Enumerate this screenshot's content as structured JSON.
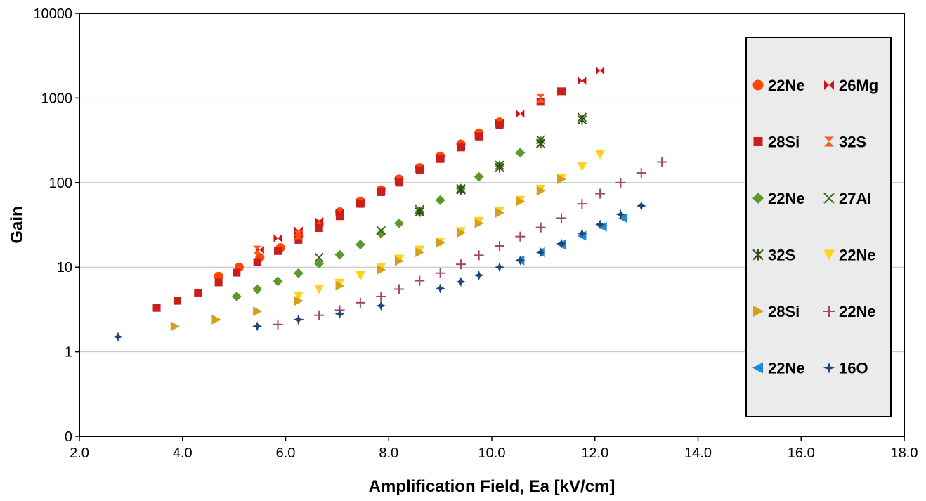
{
  "chart_data": {
    "type": "scatter",
    "title": "",
    "xlabel": "Amplification Field, Ea [kV/cm]",
    "ylabel": "Gain",
    "xlim": [
      2.0,
      18.0
    ],
    "ylim": [
      0.1,
      10000
    ],
    "y_scale": "log",
    "x_ticks": [
      "2.0",
      "4.0",
      "6.0",
      "8.0",
      "10.0",
      "12.0",
      "14.0",
      "16.0",
      "18.0"
    ],
    "y_ticks": [
      {
        "value": 0.1,
        "label": "0"
      },
      {
        "value": 1,
        "label": "1"
      },
      {
        "value": 10,
        "label": "10"
      },
      {
        "value": 100,
        "label": "100"
      },
      {
        "value": 1000,
        "label": "1000"
      },
      {
        "value": 10000,
        "label": "10000"
      }
    ],
    "grid": {
      "y_major": true,
      "x_major": false
    },
    "legend_position": "right",
    "series": [
      {
        "name": "22Ne",
        "marker": "circle",
        "color": "#FF4500",
        "x": [
          4.7,
          5.1,
          5.5,
          5.9,
          6.25,
          6.65,
          7.05,
          7.45,
          7.85,
          8.2,
          8.6,
          9.0,
          9.4,
          9.75,
          10.15
        ],
        "y": [
          7.8,
          10,
          13,
          17,
          23,
          32,
          45,
          60,
          82,
          110,
          150,
          205,
          285,
          385,
          520
        ]
      },
      {
        "name": "26Mg",
        "marker": "bowtie",
        "color": "#CC1414",
        "x": [
          5.5,
          5.85,
          6.25,
          6.65,
          7.05,
          7.45,
          7.85,
          8.2,
          8.6,
          9.0,
          9.4,
          9.75,
          10.15,
          10.55,
          10.95,
          11.35,
          11.75,
          12.1
        ],
        "y": [
          16,
          22,
          27,
          35,
          44,
          58,
          80,
          105,
          145,
          195,
          265,
          360,
          500,
          650,
          900,
          1200,
          1600,
          2100
        ]
      },
      {
        "name": "28Si",
        "marker": "square",
        "color": "#C81E1E",
        "x": [
          3.5,
          3.9,
          4.3,
          4.7,
          5.05,
          5.45,
          5.85,
          6.25,
          6.65,
          7.05,
          7.45,
          7.85,
          8.2,
          8.6,
          9.0,
          9.4,
          9.75,
          10.15,
          10.95,
          11.35
        ],
        "y": [
          3.3,
          4.0,
          5.0,
          6.6,
          8.6,
          11.5,
          15.5,
          21,
          29,
          40,
          56,
          77,
          100,
          140,
          190,
          260,
          350,
          480,
          900,
          1200
        ]
      },
      {
        "name": "32S",
        "marker": "hourglass",
        "color": "#FF5A1E",
        "x": [
          5.45,
          6.25,
          10.95
        ],
        "y": [
          16,
          24,
          990
        ]
      },
      {
        "name": "22Ne",
        "marker": "diamond",
        "color": "#5A9A2C",
        "x": [
          5.05,
          5.45,
          5.85,
          6.25,
          6.65,
          7.05,
          7.45,
          7.85,
          8.2,
          8.6,
          9.0,
          9.4,
          9.75,
          10.15,
          10.55,
          10.95
        ],
        "y": [
          4.5,
          5.5,
          6.8,
          8.5,
          11,
          14,
          18.5,
          25,
          33,
          45,
          62,
          85,
          117,
          160,
          225,
          310
        ]
      },
      {
        "name": "27Al",
        "marker": "x",
        "color": "#3C6E1E",
        "x": [
          6.65,
          7.85,
          8.6,
          9.4,
          10.15,
          10.95,
          11.75
        ],
        "y": [
          13,
          27,
          48,
          85,
          160,
          320,
          590
        ]
      },
      {
        "name": "32S",
        "marker": "asterisk",
        "color": "#2E4E14",
        "x": [
          8.6,
          9.4,
          10.15,
          10.95,
          11.75
        ],
        "y": [
          45,
          82,
          150,
          290,
          550
        ]
      },
      {
        "name": "22Ne",
        "marker": "triangle-down",
        "color": "#FFD21E",
        "x": [
          6.25,
          6.65,
          7.05,
          7.45,
          7.85,
          8.2,
          8.6,
          9.0,
          9.4,
          9.75,
          10.15,
          10.55,
          10.95,
          11.35,
          11.75,
          12.1
        ],
        "y": [
          4.6,
          5.5,
          6.5,
          8.0,
          10,
          12.5,
          16,
          20,
          26.5,
          35,
          46,
          62,
          84,
          113,
          155,
          215
        ]
      },
      {
        "name": "28Si",
        "marker": "triangle-right",
        "color": "#D2A01E",
        "x": [
          3.85,
          4.65,
          5.45,
          6.25,
          7.05,
          7.85,
          8.2,
          8.6,
          9.0,
          9.4,
          9.75,
          10.15,
          10.55,
          10.95,
          11.35
        ],
        "y": [
          2.0,
          2.4,
          3.0,
          4.0,
          6.0,
          9.3,
          11.8,
          15,
          19.5,
          25.5,
          33,
          44,
          60,
          80,
          110
        ]
      },
      {
        "name": "22Ne",
        "marker": "plus",
        "color": "#A0466E",
        "x": [
          5.85,
          6.25,
          6.65,
          7.05,
          7.45,
          7.85,
          8.2,
          8.6,
          9.0,
          9.4,
          9.75,
          10.15,
          10.55,
          10.95,
          11.35,
          11.75,
          12.1,
          12.5,
          12.9,
          13.3
        ],
        "y": [
          2.1,
          2.4,
          2.7,
          3.1,
          3.8,
          4.5,
          5.5,
          6.9,
          8.5,
          10.8,
          13.8,
          17.8,
          23,
          29.5,
          38,
          56,
          74,
          100,
          130,
          175
        ]
      },
      {
        "name": "22Ne",
        "marker": "triangle-left",
        "color": "#1E8CDC",
        "x": [
          10.55,
          10.95,
          11.35,
          11.75,
          12.15,
          12.55
        ],
        "y": [
          12,
          15,
          18.5,
          23.5,
          30,
          38
        ]
      },
      {
        "name": "16O",
        "marker": "star4",
        "color": "#1E4678",
        "x": [
          2.75,
          5.45,
          6.25,
          7.05,
          7.85,
          9.0,
          9.4,
          9.75,
          10.15,
          10.55,
          10.95,
          11.35,
          11.75,
          12.1,
          12.5,
          12.9
        ],
        "y": [
          1.5,
          2.0,
          2.4,
          2.8,
          3.5,
          5.6,
          6.7,
          8.0,
          10,
          12,
          15,
          19,
          25,
          32,
          42,
          53
        ]
      }
    ]
  }
}
